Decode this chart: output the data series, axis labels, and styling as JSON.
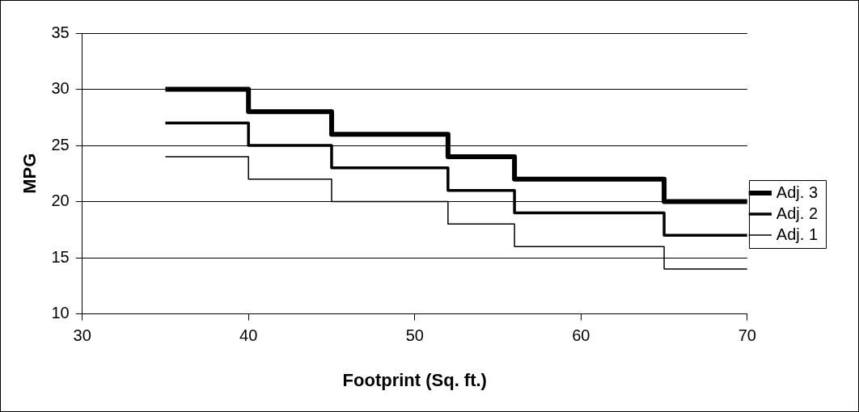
{
  "chart_data": {
    "type": "step",
    "xlabel": "Footprint (Sq. ft.)",
    "ylabel": "MPG",
    "x": [
      35,
      40,
      45,
      52,
      56,
      65,
      70
    ],
    "series": [
      {
        "name": "Adj. 3",
        "color": "#000000",
        "values": [
          30,
          28,
          26,
          24,
          22,
          20,
          20
        ]
      },
      {
        "name": "Adj. 2",
        "color": "#000000",
        "values": [
          27,
          25,
          23,
          21,
          19,
          17,
          17
        ]
      },
      {
        "name": "Adj. 1",
        "color": "#000000",
        "values": [
          24,
          22,
          20,
          18,
          16,
          14,
          14
        ]
      }
    ],
    "xlim": [
      30,
      70
    ],
    "xticks": [
      30,
      40,
      50,
      60,
      70
    ],
    "ylim": [
      10,
      35
    ],
    "yticks": [
      10,
      15,
      20,
      25,
      30,
      35
    ],
    "grid": "y",
    "legend": "right",
    "marker": "none",
    "line_style": "solid"
  }
}
